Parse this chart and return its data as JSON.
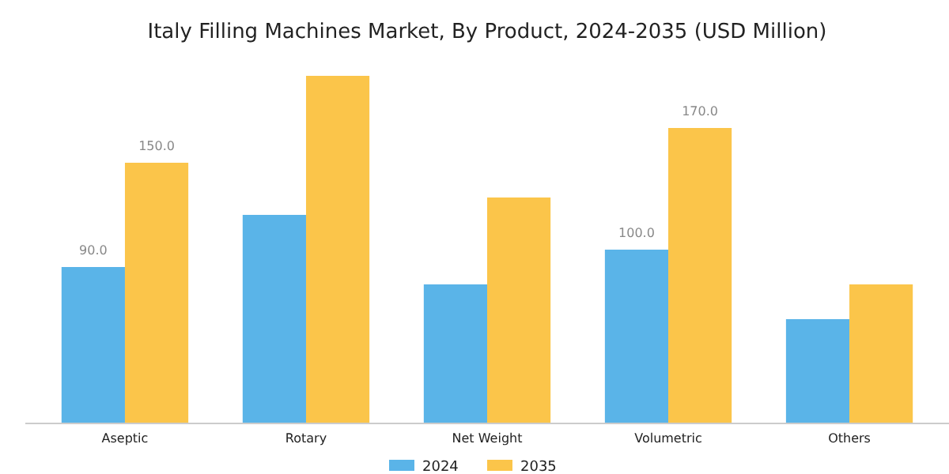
{
  "chart_data": {
    "type": "bar",
    "title": "Italy Filling Machines Market, By Product, 2024-2035 (USD Million)",
    "categories": [
      "Aseptic",
      "Rotary",
      "Net Weight",
      "Volumetric",
      "Others"
    ],
    "series": [
      {
        "name": "2024",
        "color": "#5ab4e8",
        "values": [
          90,
          120,
          80,
          100,
          60
        ],
        "value_labels": [
          "90.0",
          null,
          null,
          "100.0",
          null
        ]
      },
      {
        "name": "2035",
        "color": "#fbc54a",
        "values": [
          150,
          200,
          130,
          170,
          80
        ],
        "value_labels": [
          "150.0",
          null,
          null,
          "170.0",
          null
        ]
      }
    ],
    "legend": "bottom"
  }
}
